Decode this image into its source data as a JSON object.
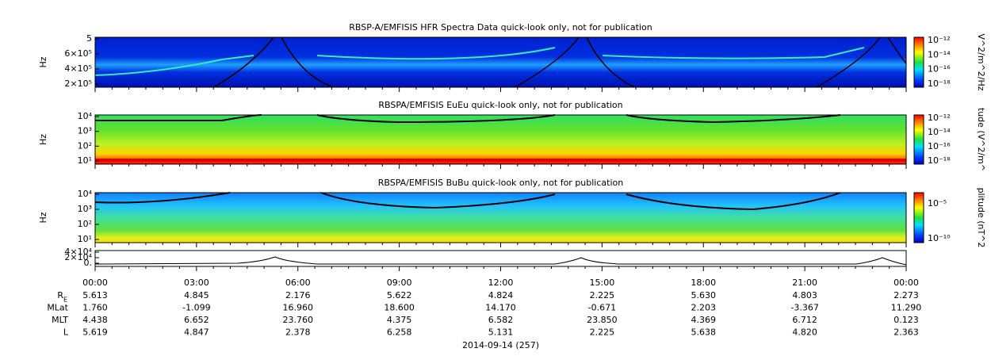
{
  "panels": [
    {
      "title": "RBSP-A/EMFISIS  HFR Spectra Data quick-look only, not for publication",
      "ylabel": "Hz",
      "yticks": [
        "5",
        "6×10⁵",
        "4×10⁵",
        "2×10⁵"
      ],
      "cbar_label": "V^2/m^2/Hz",
      "cbar_ticks": [
        "10⁻¹²",
        "10⁻¹⁴",
        "10⁻¹⁶",
        "10⁻¹⁸"
      ]
    },
    {
      "title": "RBSPA/EMFISIS  EuEu quick-look only, not for publication",
      "ylabel": "Hz",
      "yticks": [
        "10⁴",
        "10³",
        "10²",
        "10¹"
      ],
      "cbar_label": "tude (V^2/m^",
      "cbar_ticks": [
        "10⁻¹²",
        "10⁻¹⁴",
        "10⁻¹⁶",
        "10⁻¹⁸"
      ]
    },
    {
      "title": "RBSPA/EMFISIS  BuBu quick-look only, not for publication",
      "ylabel": "Hz",
      "yticks": [
        "10⁴",
        "10³",
        "10²",
        "10¹"
      ],
      "cbar_label": "plitude (nT^2",
      "cbar_ticks": [
        "10⁻⁵",
        "10⁻¹⁰"
      ]
    },
    {
      "yticks": [
        "4×10⁴",
        "2×10⁴",
        "0."
      ]
    }
  ],
  "times": [
    "00:00",
    "03:00",
    "06:00",
    "09:00",
    "12:00",
    "15:00",
    "18:00",
    "21:00",
    "00:00"
  ],
  "ephemeris": [
    {
      "label": "R",
      "sub": "E",
      "values": [
        "5.613",
        "4.845",
        "2.176",
        "5.622",
        "4.824",
        "2.225",
        "5.630",
        "4.803",
        "2.273"
      ]
    },
    {
      "label": "MLat",
      "values": [
        "1.760",
        "-1.099",
        "16.960",
        "18.600",
        "14.170",
        "-0.671",
        "2.203",
        "-3.367",
        "11.290"
      ]
    },
    {
      "label": "MLT",
      "values": [
        "4.438",
        "6.652",
        "23.760",
        "4.375",
        "6.582",
        "23.850",
        "4.369",
        "6.712",
        "0.123"
      ]
    },
    {
      "label": "L",
      "values": [
        "5.619",
        "4.847",
        "2.378",
        "6.258",
        "5.131",
        "2.225",
        "5.638",
        "4.820",
        "2.363"
      ]
    }
  ],
  "date": "2014-09-14 (257)"
}
